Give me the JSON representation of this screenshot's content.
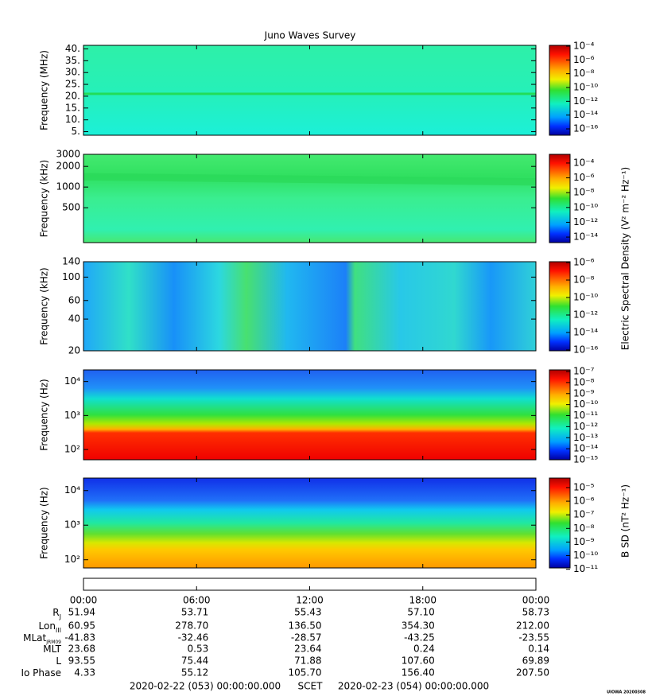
{
  "chart_data": [
    {
      "type": "spectrogram",
      "title": "Juno Waves Survey",
      "ylabel": "Frequency (MHz)",
      "log": false,
      "ylim": [
        3.5,
        41.5
      ],
      "yticks": [
        {
          "value": 40,
          "label": "40."
        },
        {
          "value": 35,
          "label": "35."
        },
        {
          "value": 30,
          "label": "30."
        },
        {
          "value": 25,
          "label": "25."
        },
        {
          "value": 20,
          "label": "20."
        },
        {
          "value": 15,
          "label": "15."
        },
        {
          "value": 10,
          "label": "10."
        },
        {
          "value": 5,
          "label": "5."
        }
      ],
      "cblim": [
        1.2e-17,
        0.00013
      ],
      "cbticks": [
        {
          "value": 0.0001,
          "label": "10⁻⁴"
        },
        {
          "value": 1e-06,
          "label": "10⁻⁶"
        },
        {
          "value": 1e-08,
          "label": "10⁻⁸"
        },
        {
          "value": 1e-10,
          "label": "10⁻¹⁰"
        },
        {
          "value": 1e-12,
          "label": "10⁻¹²"
        },
        {
          "value": 1e-14,
          "label": "10⁻¹⁴"
        },
        {
          "value": 1e-16,
          "label": "10⁻¹⁶"
        }
      ]
    },
    {
      "type": "spectrogram",
      "ylabel": "Frequency (kHz)",
      "log": true,
      "ylim": [
        155,
        3000
      ],
      "yticks": [
        3000,
        2000,
        1000,
        500
      ],
      "cblim": [
        1.8e-15,
        0.0015
      ],
      "cbticks": [
        {
          "value": 0.0001,
          "label": "10⁻⁴"
        },
        {
          "value": 1e-06,
          "label": "10⁻⁶"
        },
        {
          "value": 1e-08,
          "label": "10⁻⁸"
        },
        {
          "value": 1e-10,
          "label": "10⁻¹⁰"
        },
        {
          "value": 1e-12,
          "label": "10⁻¹²"
        },
        {
          "value": 1e-14,
          "label": "10⁻¹⁴"
        }
      ],
      "cblabel": "Electric Spectral Density (V² m⁻² Hz⁻¹)"
    },
    {
      "type": "spectrogram",
      "ylabel": "Frequency (kHz)",
      "log": true,
      "ylim": [
        20,
        140
      ],
      "yticks": [
        140,
        100,
        60,
        40,
        20
      ],
      "cblim": [
        8e-17,
        1.25e-06
      ],
      "cbticks": [
        {
          "value": 1e-06,
          "label": "10⁻⁶"
        },
        {
          "value": 1e-08,
          "label": "10⁻⁸"
        },
        {
          "value": 1e-10,
          "label": "10⁻¹⁰"
        },
        {
          "value": 1e-12,
          "label": "10⁻¹²"
        },
        {
          "value": 1e-14,
          "label": "10⁻¹⁴"
        },
        {
          "value": 1e-16,
          "label": "10⁻¹⁶"
        }
      ]
    },
    {
      "type": "spectrogram",
      "ylabel": "Frequency (Hz)",
      "log": true,
      "ylim": [
        50,
        22000
      ],
      "yticks": [
        {
          "value": 10000,
          "label": "10⁴"
        },
        {
          "value": 1000,
          "label": "10³"
        },
        {
          "value": 100,
          "label": "10²"
        }
      ],
      "cblim": [
        1e-15,
        1.4e-07
      ],
      "cbticks": [
        {
          "value": 1e-07,
          "label": "10⁻⁷"
        },
        {
          "value": 1e-08,
          "label": "10⁻⁸"
        },
        {
          "value": 1e-09,
          "label": "10⁻⁹"
        },
        {
          "value": 1e-10,
          "label": "10⁻¹⁰"
        },
        {
          "value": 1e-11,
          "label": "10⁻¹¹"
        },
        {
          "value": 1e-12,
          "label": "10⁻¹²"
        },
        {
          "value": 1e-13,
          "label": "10⁻¹³"
        },
        {
          "value": 1e-14,
          "label": "10⁻¹⁴"
        },
        {
          "value": 1e-15,
          "label": "10⁻¹⁵"
        }
      ]
    },
    {
      "type": "spectrogram",
      "ylabel": "Frequency (Hz)",
      "log": true,
      "ylim": [
        58,
        23000
      ],
      "yticks": [
        {
          "value": 10000,
          "label": "10⁴"
        },
        {
          "value": 1000,
          "label": "10³"
        },
        {
          "value": 100,
          "label": "10²"
        }
      ],
      "cblim": [
        1.25e-11,
        5e-05
      ],
      "cbticks": [
        {
          "value": 1e-05,
          "label": "10⁻⁵"
        },
        {
          "value": 1e-06,
          "label": "10⁻⁶"
        },
        {
          "value": 1e-07,
          "label": "10⁻⁷"
        },
        {
          "value": 1e-08,
          "label": "10⁻⁸"
        },
        {
          "value": 1e-09,
          "label": "10⁻⁹"
        },
        {
          "value": 1e-10,
          "label": "10⁻¹⁰"
        },
        {
          "value": 1e-11,
          "label": "10⁻¹¹"
        }
      ],
      "cblabel": "B SD (nT² Hz⁻¹)"
    }
  ],
  "time_axis": {
    "xlim": [
      0,
      24
    ],
    "xticks": [
      {
        "value": 0,
        "label": "00:00"
      },
      {
        "value": 6,
        "label": "06:00"
      },
      {
        "value": 12,
        "label": "12:00"
      },
      {
        "value": 18,
        "label": "18:00"
      },
      {
        "value": 24,
        "label": "00:00"
      }
    ]
  },
  "ephemeris": [
    {
      "label": "R",
      "sub": "J",
      "values": [
        {
          "value": 51.94,
          "label": "51.94"
        },
        {
          "value": 53.71,
          "label": "53.71"
        },
        {
          "value": 55.43,
          "label": "55.43"
        },
        {
          "value": 57.1,
          "label": "57.10"
        },
        {
          "value": 58.73,
          "label": "58.73"
        }
      ]
    },
    {
      "label": "Lon",
      "sub": "III",
      "values": [
        {
          "value": 60.95,
          "label": "60.95"
        },
        {
          "value": 278.7,
          "label": "278.70"
        },
        {
          "value": 136.5,
          "label": "136.50"
        },
        {
          "value": 354.3,
          "label": "354.30"
        },
        {
          "value": 212,
          "label": "212.00"
        }
      ]
    },
    {
      "label": "MLat",
      "sub": "JRM09",
      "values": [
        {
          "value": -41.83,
          "label": "-41.83"
        },
        {
          "value": -32.46,
          "label": "-32.46"
        },
        {
          "value": -28.57,
          "label": "-28.57"
        },
        {
          "value": -43.25,
          "label": "-43.25"
        },
        {
          "value": -23.55,
          "label": "-23.55"
        }
      ]
    },
    {
      "label": "MLT",
      "values": [
        {
          "value": 23.68,
          "label": "23.68"
        },
        {
          "value": 0.53,
          "label": "0.53"
        },
        {
          "value": 23.64,
          "label": "23.64"
        },
        {
          "value": 0.24,
          "label": "0.24"
        },
        {
          "value": 0.14,
          "label": "0.14"
        }
      ]
    },
    {
      "label": "L",
      "values": [
        {
          "value": 93.55,
          "label": "93.55"
        },
        {
          "value": 75.44,
          "label": "75.44"
        },
        {
          "value": 71.88,
          "label": "71.88"
        },
        {
          "value": 107.6,
          "label": "107.60"
        },
        {
          "value": 69.89,
          "label": "69.89"
        }
      ]
    },
    {
      "label": "Io Phase",
      "values": [
        {
          "value": 4.33,
          "label": "4.33"
        },
        {
          "value": 55.12,
          "label": "55.12"
        },
        {
          "value": 105.7,
          "label": "105.70"
        },
        {
          "value": 156.4,
          "label": "156.40"
        },
        {
          "value": 207.5,
          "label": "207.50"
        }
      ]
    }
  ],
  "footer": {
    "start": "2020-02-22 (053) 00:00:00.000",
    "scet": "SCET",
    "end": "2020-02-23 (054) 00:00:00.000",
    "stamp": "UIOWA 20200308"
  }
}
